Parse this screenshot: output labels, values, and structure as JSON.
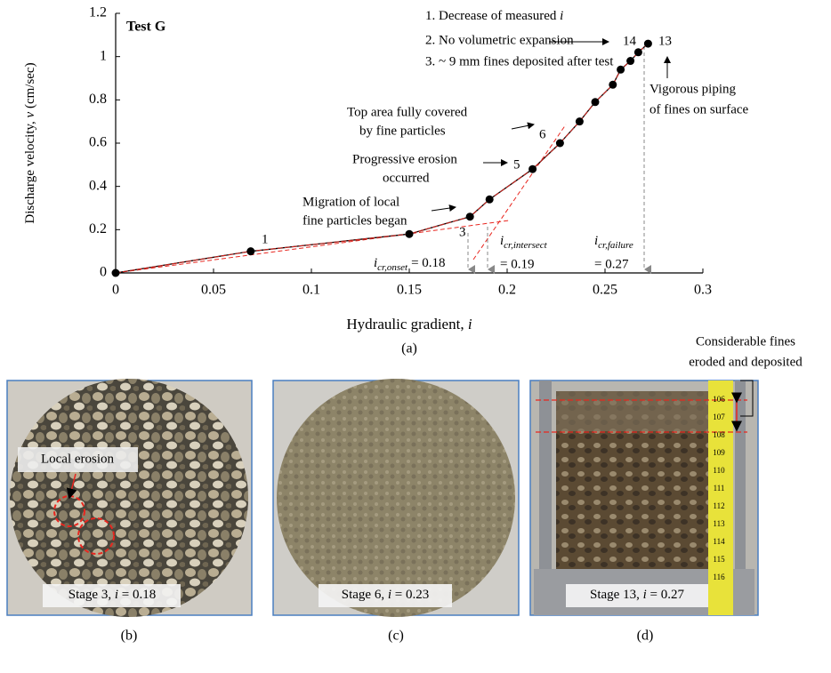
{
  "chart_data": {
    "type": "line",
    "title": "Test G",
    "caption": "(a)",
    "x_label": [
      "Hydraulic gradient, ",
      "i"
    ],
    "y_label": [
      "Discharge velocity, ",
      "v",
      " (cm/sec)"
    ],
    "x": [
      0,
      0.069,
      0.15,
      0.181,
      0.191,
      0.213,
      0.227,
      0.237,
      0.245,
      0.254,
      0.258,
      0.263,
      0.267,
      0.272
    ],
    "series": [
      {
        "color": "#000000",
        "values": [
          0,
          0.1,
          0.18,
          0.26,
          0.34,
          0.48,
          0.6,
          0.7,
          0.79,
          0.87,
          0.94,
          0.98,
          1.02,
          1.06
        ]
      }
    ],
    "xlim": [
      0,
      0.3
    ],
    "xticks": [
      0,
      0.05,
      0.1,
      0.15,
      0.2,
      0.25,
      0.3
    ],
    "ylim": [
      0,
      1.2
    ],
    "yticks": [
      0,
      0.2,
      0.4,
      0.6,
      0.8,
      1,
      1.2
    ],
    "fit_color": "#e8261f",
    "point_labels": [
      "1",
      "3",
      "5",
      "6",
      "14",
      "13"
    ],
    "annotations": {
      "notes": [
        [
          "1. Decrease of measured ",
          "i"
        ],
        [
          "2. No volumetric expansion"
        ],
        [
          "3. ~ 9 mm fines deposited after test"
        ]
      ],
      "piping": [
        "Vigorous piping",
        "of fines on surface"
      ],
      "top_area": [
        "Top area fully covered",
        "by fine particles"
      ],
      "erosion": [
        "Progressive erosion",
        "occurred"
      ],
      "migration": [
        "Migration of local",
        "fine particles began"
      ]
    },
    "thresholds": [
      {
        "value": 0.18,
        "symbol": "i",
        "subscript": "cr,onset",
        "label": "= 0.18"
      },
      {
        "value": 0.19,
        "symbol": "i",
        "subscript": "cr,intersect",
        "label": "= 0.19"
      },
      {
        "value": 0.27,
        "symbol": "i",
        "subscript": "cr,failure",
        "label": "= 0.27"
      }
    ]
  },
  "panels": [
    {
      "label": "(b)",
      "caption": [
        "Stage 3, ",
        "i",
        " = 0.18"
      ],
      "note": "Local erosion"
    },
    {
      "label": "(c)",
      "caption": [
        "Stage 6, ",
        "i",
        " = 0.23"
      ]
    },
    {
      "label": "(d)",
      "caption": [
        "Stage 13, ",
        "i",
        " = 0.27"
      ],
      "note": [
        "Considerable fines",
        "eroded and deposited"
      ],
      "ruler": [
        106,
        107,
        108,
        109,
        110,
        111,
        112,
        113,
        114,
        115,
        116
      ]
    }
  ]
}
